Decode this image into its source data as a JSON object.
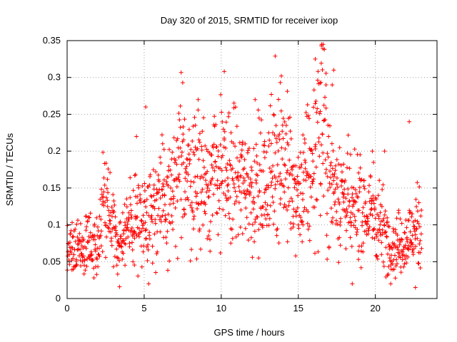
{
  "chart_data": {
    "type": "scatter",
    "title": "Day 320 of 2015, SRMTID for receiver ixop",
    "xlabel": "GPS time / hours",
    "ylabel": "SRMTID / TECUs",
    "xlim": [
      0,
      24
    ],
    "ylim": [
      0,
      0.35
    ],
    "grid": true,
    "marker": "+",
    "colors": {
      "points": "#ff0000",
      "grid": "#a0a0a0",
      "axes": "#000000"
    },
    "x_ticks": [
      0,
      5,
      10,
      15,
      20
    ],
    "x_tick_labels": [
      "0",
      "5",
      "10",
      "15",
      "20"
    ],
    "y_ticks": [
      0,
      0.05,
      0.1,
      0.15,
      0.2,
      0.25,
      0.3,
      0.35
    ],
    "y_tick_labels": [
      "0",
      "0.05",
      "0.1",
      "0.15",
      "0.2",
      "0.25",
      "0.3",
      "0.35"
    ],
    "series": [
      {
        "name": "SRMTID",
        "trend": [
          [
            0,
            0.065
          ],
          [
            1,
            0.07
          ],
          [
            2,
            0.08
          ],
          [
            2.5,
            0.13
          ],
          [
            3,
            0.09
          ],
          [
            3.5,
            0.08
          ],
          [
            4,
            0.1
          ],
          [
            5,
            0.115
          ],
          [
            6,
            0.125
          ],
          [
            7,
            0.14
          ],
          [
            7.5,
            0.19
          ],
          [
            8,
            0.17
          ],
          [
            9,
            0.16
          ],
          [
            10,
            0.17
          ],
          [
            11,
            0.16
          ],
          [
            12,
            0.15
          ],
          [
            13,
            0.15
          ],
          [
            13.5,
            0.2
          ],
          [
            14,
            0.2
          ],
          [
            14.5,
            0.15
          ],
          [
            15,
            0.13
          ],
          [
            15.5,
            0.15
          ],
          [
            16,
            0.19
          ],
          [
            16.5,
            0.25
          ],
          [
            17,
            0.16
          ],
          [
            18,
            0.14
          ],
          [
            18.5,
            0.11
          ],
          [
            19,
            0.13
          ],
          [
            19.5,
            0.11
          ],
          [
            20,
            0.12
          ],
          [
            21,
            0.07
          ],
          [
            22,
            0.08
          ],
          [
            23,
            0.1
          ]
        ],
        "sample_count": 1400,
        "x_range": [
          0,
          23
        ]
      }
    ],
    "outliers": [
      [
        3.4,
        0.016
      ],
      [
        12.2,
        0.27
      ],
      [
        13.5,
        0.329
      ],
      [
        13.9,
        0.302
      ],
      [
        15.3,
        0.222
      ],
      [
        15.6,
        0.263
      ],
      [
        16.1,
        0.325
      ],
      [
        16.5,
        0.343
      ],
      [
        16.6,
        0.339
      ],
      [
        16.8,
        0.29
      ],
      [
        17.2,
        0.29
      ],
      [
        17.3,
        0.31
      ],
      [
        18.5,
        0.02
      ],
      [
        10.2,
        0.308
      ],
      [
        7.5,
        0.293
      ],
      [
        22.2,
        0.24
      ],
      [
        22.6,
        0.015
      ],
      [
        20.6,
        0.2
      ],
      [
        19.8,
        0.2
      ],
      [
        8.5,
        0.27
      ],
      [
        6.2,
        0.21
      ],
      [
        4.5,
        0.22
      ],
      [
        5.1,
        0.26
      ]
    ]
  }
}
